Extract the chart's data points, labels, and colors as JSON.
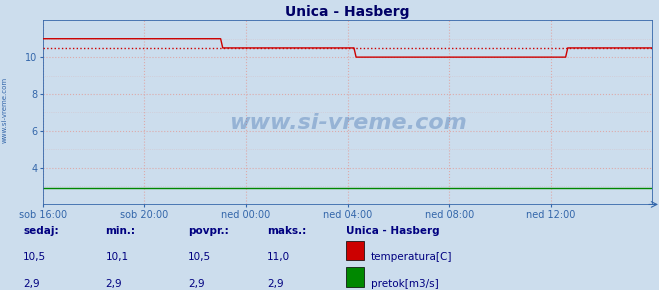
{
  "title": "Unica - Hasberg",
  "bg_color": "#ccdded",
  "plot_bg_color": "#ccdded",
  "grid_color": "#ddaaaa",
  "x_start": 0,
  "x_end": 288,
  "xlim": [
    0,
    288
  ],
  "ylim": [
    2,
    12
  ],
  "yticks": [
    4,
    6,
    8,
    10
  ],
  "xtick_labels": [
    "sob 16:00",
    "sob 20:00",
    "ned 00:00",
    "ned 04:00",
    "ned 08:00",
    "ned 12:00"
  ],
  "xtick_positions": [
    0,
    48,
    96,
    144,
    192,
    240
  ],
  "temp_color": "#cc0000",
  "flow_color": "#008800",
  "avg_value": 10.5,
  "avg_color": "#cc0000",
  "watermark": "www.si-vreme.com",
  "watermark_color": "#3366aa",
  "watermark_alpha": 0.35,
  "left_label": "www.si-vreme.com",
  "left_label_color": "#3366aa",
  "title_color": "#000066",
  "title_fontsize": 10,
  "axis_label_color": "#3366aa",
  "legend_title": "Unica - Hasberg",
  "legend_title_color": "#000080",
  "legend_items": [
    "temperatura[C]",
    "pretok[m3/s]"
  ],
  "legend_colors": [
    "#cc0000",
    "#008800"
  ],
  "stats_labels": [
    "sedaj:",
    "min.:",
    "povpr.:",
    "maks.:"
  ],
  "stats_color": "#000080",
  "temp_stats": [
    10.5,
    10.1,
    10.5,
    11.0
  ],
  "flow_stats": [
    2.9,
    2.9,
    2.9,
    2.9
  ]
}
